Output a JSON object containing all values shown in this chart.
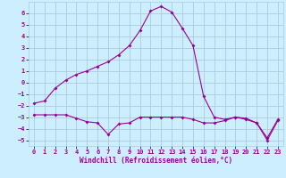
{
  "xlabel": "Windchill (Refroidissement éolien,°C)",
  "bg_color": "#cceeff",
  "grid_color": "#aaccdd",
  "line_color": "#990099",
  "xlim": [
    -0.5,
    23.5
  ],
  "ylim": [
    -5.5,
    7.0
  ],
  "xticks": [
    0,
    1,
    2,
    3,
    4,
    5,
    6,
    7,
    8,
    9,
    10,
    11,
    12,
    13,
    14,
    15,
    16,
    17,
    18,
    19,
    20,
    21,
    22,
    23
  ],
  "yticks": [
    -5,
    -4,
    -3,
    -2,
    -1,
    0,
    1,
    2,
    3,
    4,
    5,
    6
  ],
  "series1_x": [
    0,
    1,
    2,
    3,
    4,
    5,
    6,
    7,
    8,
    9,
    10,
    11,
    12,
    13,
    14,
    15,
    16,
    17,
    18,
    19,
    20,
    21,
    22,
    23
  ],
  "series1_y": [
    -1.8,
    -1.6,
    -0.5,
    0.2,
    0.7,
    1.0,
    1.4,
    1.8,
    2.4,
    3.2,
    4.5,
    6.2,
    6.6,
    6.1,
    4.7,
    3.2,
    -1.2,
    -3.0,
    -3.2,
    -3.0,
    -3.1,
    -3.5,
    -4.8,
    -3.2
  ],
  "series2_x": [
    0,
    1,
    2,
    3,
    4,
    5,
    6,
    7,
    8,
    9,
    10,
    11,
    12,
    13,
    14,
    15,
    16,
    17,
    18,
    19,
    20,
    21,
    22,
    23
  ],
  "series2_y": [
    -2.8,
    -2.8,
    -2.8,
    -2.8,
    -3.1,
    -3.4,
    -3.5,
    -4.5,
    -3.6,
    -3.5,
    -3.0,
    -3.0,
    -3.0,
    -3.0,
    -3.0,
    -3.2,
    -3.5,
    -3.5,
    -3.3,
    -3.0,
    -3.2,
    -3.5,
    -5.0,
    -3.3
  ],
  "tick_fontsize": 5,
  "xlabel_fontsize": 5.5,
  "marker_size": 2.0
}
